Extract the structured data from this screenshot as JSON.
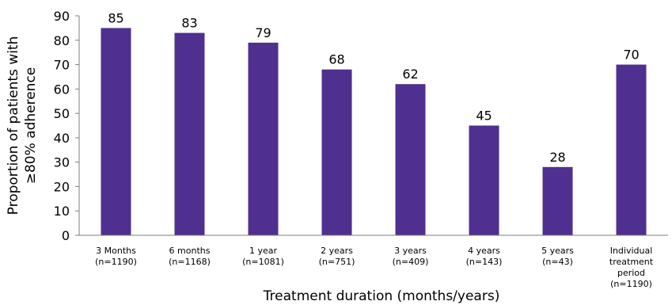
{
  "chart_data": {
    "type": "bar",
    "title": "",
    "xlabel": "Treatment duration (months/years)",
    "ylabel_lines": [
      "Proportion of patients with",
      "≥80% adherence"
    ],
    "ylim": [
      0,
      90
    ],
    "yticks": [
      0,
      10,
      20,
      30,
      40,
      50,
      60,
      70,
      80,
      90
    ],
    "grid": false,
    "legend": "none",
    "bar_color": "#4F2F8F",
    "categories": [
      [
        "3 Months",
        "(n=1190)"
      ],
      [
        "6 months",
        "(n=1168)"
      ],
      [
        "1 year",
        "(n=1081)"
      ],
      [
        "2 years",
        "(n=751)"
      ],
      [
        "3 years",
        "(n=409)"
      ],
      [
        "4 years",
        "(n=143)"
      ],
      [
        "5 years",
        "(n=43)"
      ],
      [
        "Individual",
        "treatment",
        "period",
        "(n=1190)"
      ]
    ],
    "values": [
      85,
      83,
      79,
      68,
      62,
      45,
      28,
      70
    ]
  }
}
